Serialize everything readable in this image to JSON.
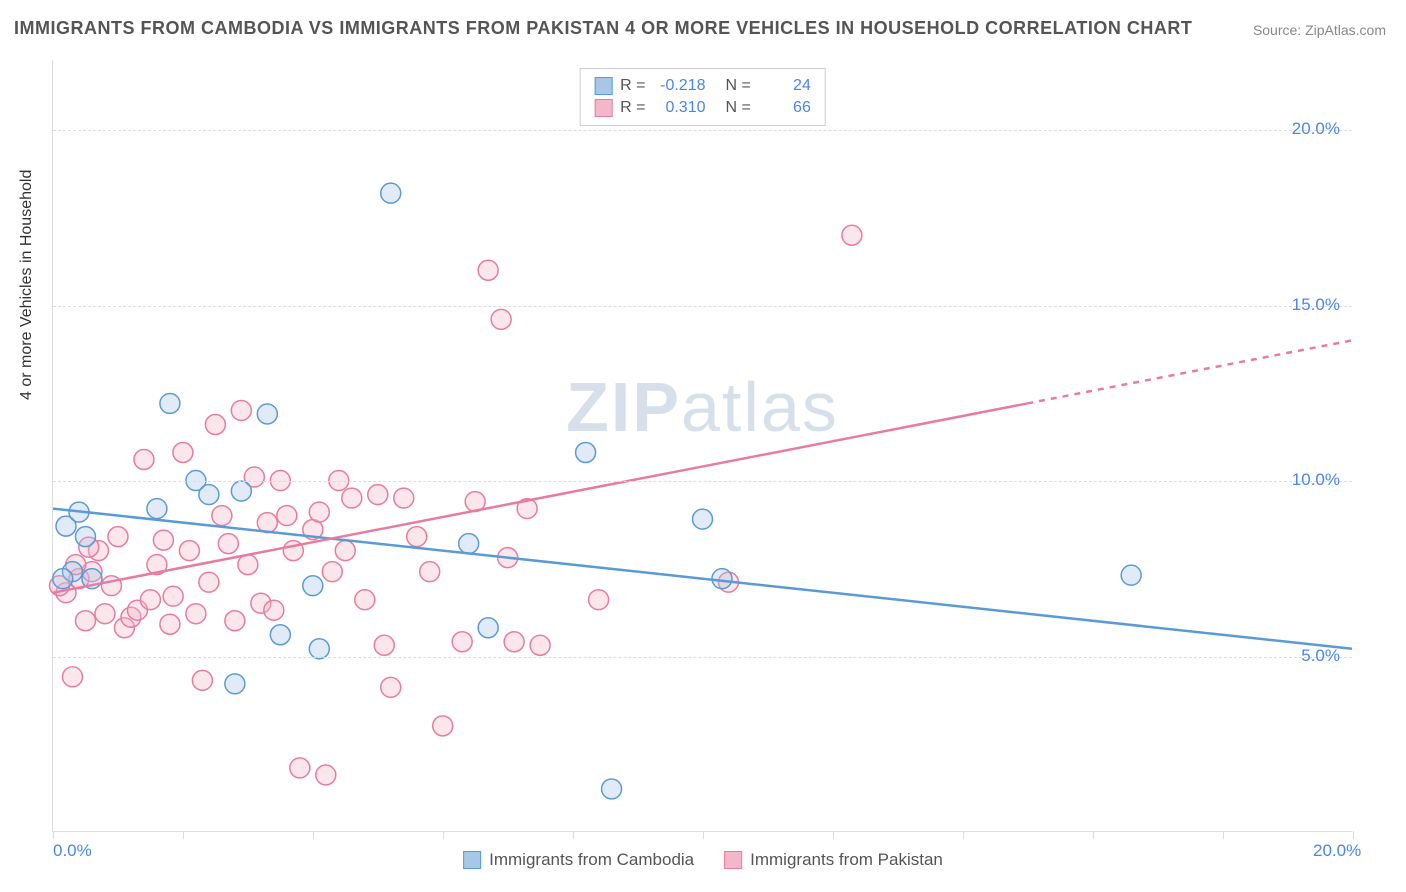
{
  "title": "IMMIGRANTS FROM CAMBODIA VS IMMIGRANTS FROM PAKISTAN 4 OR MORE VEHICLES IN HOUSEHOLD CORRELATION CHART",
  "source": "Source: ZipAtlas.com",
  "y_axis_label": "4 or more Vehicles in Household",
  "watermark_a": "ZIP",
  "watermark_b": "atlas",
  "chart": {
    "type": "scatter",
    "xlim": [
      0,
      20
    ],
    "ylim": [
      0,
      22
    ],
    "x_ticks": [
      0,
      2,
      4,
      6,
      8,
      10,
      12,
      14,
      16,
      18,
      20
    ],
    "x_tick_labels": {
      "0": "0.0%",
      "20": "20.0%"
    },
    "y_gridlines": [
      5,
      10,
      15,
      20
    ],
    "y_tick_labels": [
      "5.0%",
      "10.0%",
      "15.0%",
      "20.0%"
    ],
    "background_color": "#ffffff",
    "grid_color": "#dddddd",
    "marker_radius": 10,
    "marker_stroke_width": 1.5,
    "marker_fill_opacity": 0.35,
    "line_width": 2.5
  },
  "series": [
    {
      "name": "Immigrants from Cambodia",
      "color_stroke": "#5b9bd5",
      "color_fill": "#a7c7e7",
      "R": "-0.218",
      "N": "24",
      "regression": {
        "x1": 0,
        "y1": 9.2,
        "x2": 20,
        "y2": 5.2
      },
      "points": [
        [
          0.2,
          8.7
        ],
        [
          0.3,
          7.4
        ],
        [
          0.4,
          9.1
        ],
        [
          0.5,
          8.4
        ],
        [
          0.6,
          7.2
        ],
        [
          1.6,
          9.2
        ],
        [
          1.8,
          12.2
        ],
        [
          2.2,
          10.0
        ],
        [
          2.4,
          9.6
        ],
        [
          2.8,
          4.2
        ],
        [
          2.9,
          9.7
        ],
        [
          3.3,
          11.9
        ],
        [
          3.5,
          5.6
        ],
        [
          4.0,
          7.0
        ],
        [
          4.1,
          5.2
        ],
        [
          5.2,
          18.2
        ],
        [
          6.4,
          8.2
        ],
        [
          6.7,
          5.8
        ],
        [
          8.2,
          10.8
        ],
        [
          8.6,
          1.2
        ],
        [
          10.0,
          8.9
        ],
        [
          10.3,
          7.2
        ],
        [
          16.6,
          7.3
        ],
        [
          0.15,
          7.2
        ]
      ]
    },
    {
      "name": "Immigrants from Pakistan",
      "color_stroke": "#e87ca0",
      "color_fill": "#f4b6c9",
      "R": "0.310",
      "N": "66",
      "regression": {
        "x1": 0,
        "y1": 6.8,
        "x2": 20,
        "y2": 14.0
      },
      "regression_dash_after_x": 15,
      "points": [
        [
          0.2,
          6.8
        ],
        [
          0.3,
          4.4
        ],
        [
          0.4,
          7.2
        ],
        [
          0.5,
          6.0
        ],
        [
          0.6,
          7.4
        ],
        [
          0.7,
          8.0
        ],
        [
          0.8,
          6.2
        ],
        [
          0.9,
          7.0
        ],
        [
          1.0,
          8.4
        ],
        [
          1.1,
          5.8
        ],
        [
          1.2,
          6.1
        ],
        [
          1.3,
          6.3
        ],
        [
          1.4,
          10.6
        ],
        [
          1.5,
          6.6
        ],
        [
          1.6,
          7.6
        ],
        [
          1.7,
          8.3
        ],
        [
          1.8,
          5.9
        ],
        [
          1.85,
          6.7
        ],
        [
          2.0,
          10.8
        ],
        [
          2.1,
          8.0
        ],
        [
          2.2,
          6.2
        ],
        [
          2.3,
          4.3
        ],
        [
          2.4,
          7.1
        ],
        [
          2.5,
          11.6
        ],
        [
          2.6,
          9.0
        ],
        [
          2.7,
          8.2
        ],
        [
          2.8,
          6.0
        ],
        [
          2.9,
          12.0
        ],
        [
          3.0,
          7.6
        ],
        [
          3.1,
          10.1
        ],
        [
          3.2,
          6.5
        ],
        [
          3.3,
          8.8
        ],
        [
          3.4,
          6.3
        ],
        [
          3.5,
          10.0
        ],
        [
          3.6,
          9.0
        ],
        [
          3.7,
          8.0
        ],
        [
          3.8,
          1.8
        ],
        [
          4.0,
          8.6
        ],
        [
          4.1,
          9.1
        ],
        [
          4.2,
          1.6
        ],
        [
          4.3,
          7.4
        ],
        [
          4.4,
          10.0
        ],
        [
          4.5,
          8.0
        ],
        [
          4.6,
          9.5
        ],
        [
          4.8,
          6.6
        ],
        [
          5.0,
          9.6
        ],
        [
          5.1,
          5.3
        ],
        [
          5.2,
          4.1
        ],
        [
          5.4,
          9.5
        ],
        [
          5.6,
          8.4
        ],
        [
          5.8,
          7.4
        ],
        [
          6.0,
          3.0
        ],
        [
          6.3,
          5.4
        ],
        [
          6.5,
          9.4
        ],
        [
          6.7,
          16.0
        ],
        [
          6.9,
          14.6
        ],
        [
          7.0,
          7.8
        ],
        [
          7.1,
          5.4
        ],
        [
          7.3,
          9.2
        ],
        [
          7.5,
          5.3
        ],
        [
          8.4,
          6.6
        ],
        [
          10.4,
          7.1
        ],
        [
          12.3,
          17.0
        ],
        [
          0.35,
          7.6
        ],
        [
          0.55,
          8.1
        ],
        [
          0.1,
          7.0
        ]
      ]
    }
  ]
}
